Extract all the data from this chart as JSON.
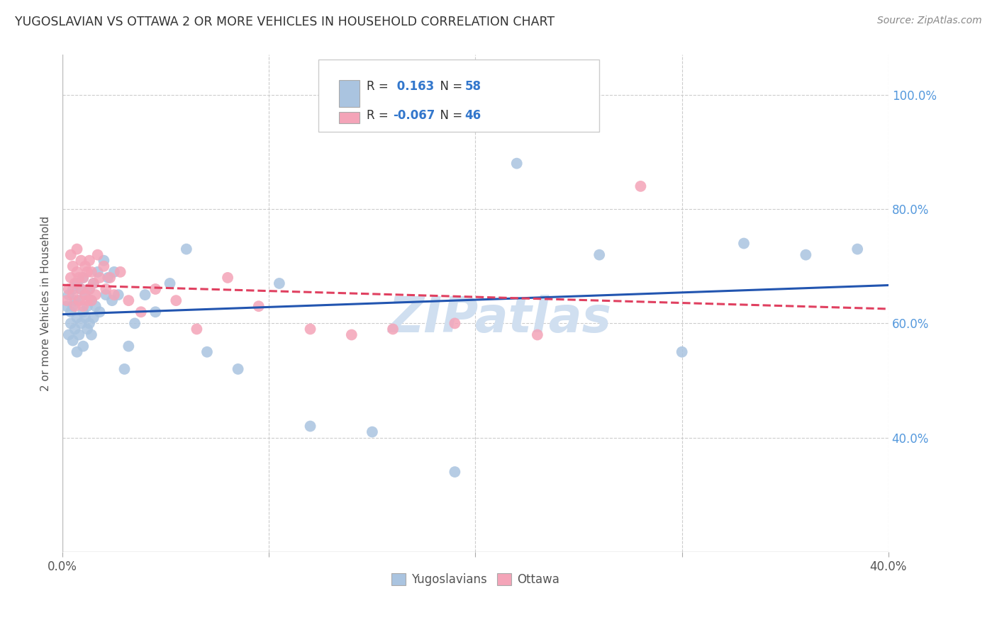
{
  "title": "YUGOSLAVIAN VS OTTAWA 2 OR MORE VEHICLES IN HOUSEHOLD CORRELATION CHART",
  "source": "Source: ZipAtlas.com",
  "ylabel": "2 or more Vehicles in Household",
  "xlim": [
    0.0,
    40.0
  ],
  "ylim": [
    20.0,
    107.0
  ],
  "y_ticks": [
    40.0,
    60.0,
    80.0,
    100.0
  ],
  "x_ticks": [
    0.0,
    10.0,
    20.0,
    30.0,
    40.0
  ],
  "blue_R": 0.163,
  "blue_N": 58,
  "pink_R": -0.067,
  "pink_N": 46,
  "blue_scatter_color": "#aac4e0",
  "pink_scatter_color": "#f4a4b8",
  "blue_line_color": "#2255b0",
  "pink_line_color": "#e04060",
  "legend_label_blue": "Yugoslavians",
  "legend_label_pink": "Ottawa",
  "background_color": "#ffffff",
  "grid_color": "#cccccc",
  "title_color": "#333333",
  "tick_right_color": "#5599dd",
  "watermark_color": "#d0dff0",
  "blue_x": [
    0.2,
    0.3,
    0.3,
    0.4,
    0.4,
    0.5,
    0.5,
    0.5,
    0.6,
    0.6,
    0.7,
    0.7,
    0.7,
    0.8,
    0.8,
    0.9,
    0.9,
    1.0,
    1.0,
    1.0,
    1.1,
    1.1,
    1.2,
    1.2,
    1.3,
    1.3,
    1.4,
    1.4,
    1.5,
    1.5,
    1.6,
    1.7,
    1.8,
    2.0,
    2.1,
    2.2,
    2.4,
    2.5,
    2.7,
    3.0,
    3.2,
    3.5,
    4.0,
    4.5,
    5.2,
    6.0,
    7.0,
    8.5,
    10.5,
    12.0,
    15.0,
    19.0,
    22.0,
    26.0,
    30.0,
    33.0,
    36.0,
    38.5
  ],
  "blue_y": [
    63.0,
    58.0,
    65.0,
    60.0,
    62.0,
    57.0,
    63.0,
    66.0,
    59.0,
    64.0,
    55.0,
    61.0,
    67.0,
    58.0,
    64.0,
    60.0,
    66.0,
    56.0,
    62.0,
    68.0,
    61.0,
    65.0,
    59.0,
    63.0,
    60.0,
    66.0,
    58.0,
    64.0,
    61.0,
    67.0,
    63.0,
    69.0,
    62.0,
    71.0,
    65.0,
    68.0,
    64.0,
    69.0,
    65.0,
    52.0,
    56.0,
    60.0,
    65.0,
    62.0,
    67.0,
    73.0,
    55.0,
    52.0,
    67.0,
    42.0,
    41.0,
    34.0,
    88.0,
    72.0,
    55.0,
    74.0,
    72.0,
    73.0
  ],
  "pink_x": [
    0.2,
    0.3,
    0.4,
    0.4,
    0.5,
    0.5,
    0.6,
    0.6,
    0.7,
    0.7,
    0.8,
    0.8,
    0.9,
    0.9,
    1.0,
    1.0,
    1.1,
    1.1,
    1.2,
    1.2,
    1.3,
    1.3,
    1.4,
    1.4,
    1.5,
    1.6,
    1.7,
    1.8,
    2.0,
    2.1,
    2.3,
    2.5,
    2.8,
    3.2,
    3.8,
    4.5,
    5.5,
    6.5,
    8.0,
    9.5,
    12.0,
    14.0,
    16.0,
    19.0,
    23.0,
    28.0
  ],
  "pink_y": [
    64.0,
    66.0,
    68.0,
    72.0,
    65.0,
    70.0,
    63.0,
    67.0,
    69.0,
    73.0,
    64.0,
    68.0,
    66.0,
    71.0,
    63.0,
    68.0,
    65.0,
    70.0,
    64.0,
    69.0,
    66.0,
    71.0,
    64.0,
    69.0,
    67.0,
    65.0,
    72.0,
    68.0,
    70.0,
    66.0,
    68.0,
    65.0,
    69.0,
    64.0,
    62.0,
    66.0,
    64.0,
    59.0,
    68.0,
    63.0,
    59.0,
    58.0,
    59.0,
    60.0,
    58.0,
    84.0
  ]
}
